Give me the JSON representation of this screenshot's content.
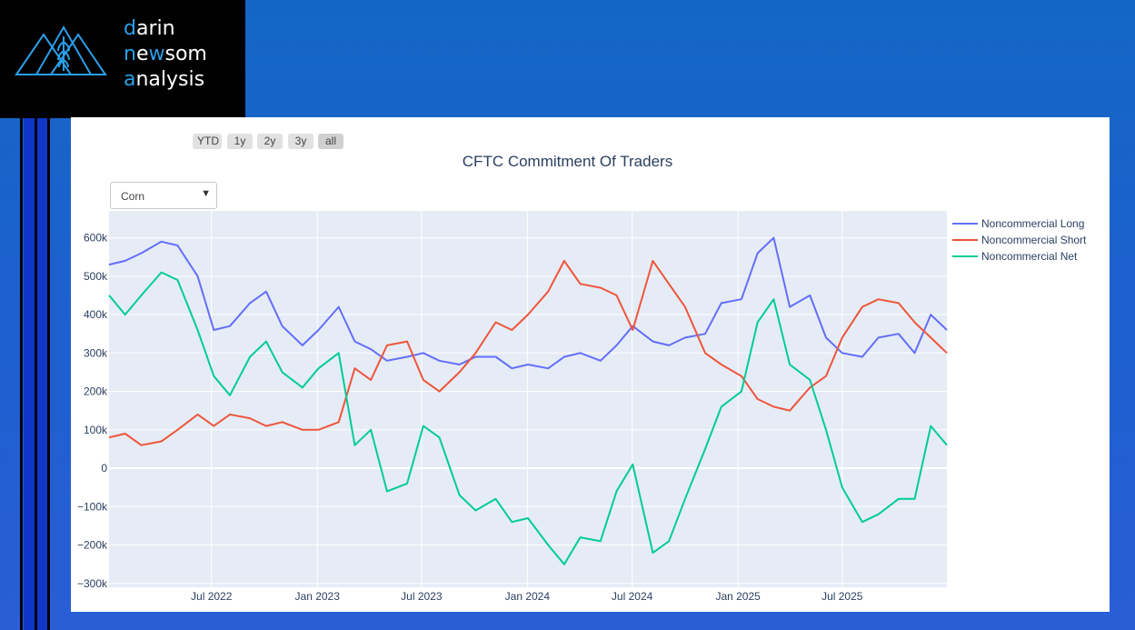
{
  "brand": {
    "line1": {
      "first": "d",
      "rest": "arin"
    },
    "line2": {
      "first": "n",
      "mid": "e",
      "w": "w",
      "rest": "som"
    },
    "line3": {
      "first": "a",
      "rest": "nalysis"
    },
    "accent_color": "#2a9fe8"
  },
  "range_selector": {
    "buttons": [
      "YTD",
      "1y",
      "2y",
      "3y",
      "all"
    ],
    "active": "all"
  },
  "dropdown": {
    "selected": "Corn",
    "icon": "caret-down-icon"
  },
  "chart_data": {
    "type": "line",
    "title": "CFTC Commitment Of Traders",
    "x_tick_labels": [
      "Jul 2022",
      "Jan 2023",
      "Jul 2023",
      "Jan 2024",
      "Jul 2024",
      "Jan 2025",
      "Jul 2025"
    ],
    "x_range": [
      "2022-01-04",
      "2025-12-30"
    ],
    "y_ticks": [
      -300000,
      -200000,
      -100000,
      0,
      100000,
      200000,
      300000,
      400000,
      500000,
      600000
    ],
    "y_tick_labels": [
      "−300k",
      "−200k",
      "−100k",
      "0",
      "100k",
      "200k",
      "300k",
      "400k",
      "500k",
      "600k"
    ],
    "ylim": [
      -310000,
      670000
    ],
    "grid": true,
    "legend_position": "right",
    "x": [
      "2022-01-04",
      "2022-02-01",
      "2022-03-01",
      "2022-04-05",
      "2022-05-03",
      "2022-06-07",
      "2022-07-05",
      "2022-08-02",
      "2022-09-06",
      "2022-10-04",
      "2022-11-01",
      "2022-12-06",
      "2023-01-03",
      "2023-02-07",
      "2023-03-07",
      "2023-04-04",
      "2023-05-02",
      "2023-06-06",
      "2023-07-04",
      "2023-08-01",
      "2023-09-05",
      "2023-10-03",
      "2023-11-07",
      "2023-12-05",
      "2024-01-02",
      "2024-02-06",
      "2024-03-05",
      "2024-04-02",
      "2024-05-07",
      "2024-06-04",
      "2024-07-02",
      "2024-08-06",
      "2024-09-03",
      "2024-10-01",
      "2024-11-05",
      "2024-12-03",
      "2025-01-07",
      "2025-02-04",
      "2025-03-04",
      "2025-04-01",
      "2025-05-06",
      "2025-06-03",
      "2025-07-01",
      "2025-08-05",
      "2025-09-02",
      "2025-10-07",
      "2025-11-04",
      "2025-12-02",
      "2025-12-30"
    ],
    "series": [
      {
        "name": "Noncommercial Long",
        "color": "#636efa",
        "values": [
          530000,
          540000,
          560000,
          590000,
          580000,
          500000,
          360000,
          370000,
          430000,
          460000,
          370000,
          320000,
          360000,
          420000,
          330000,
          310000,
          280000,
          290000,
          300000,
          280000,
          270000,
          290000,
          290000,
          260000,
          270000,
          260000,
          290000,
          300000,
          280000,
          320000,
          370000,
          330000,
          320000,
          340000,
          350000,
          430000,
          440000,
          560000,
          600000,
          420000,
          450000,
          340000,
          300000,
          290000,
          340000,
          350000,
          300000,
          400000,
          360000
        ]
      },
      {
        "name": "Noncommercial Short",
        "color": "#ef553b",
        "values": [
          80000,
          90000,
          60000,
          70000,
          100000,
          140000,
          110000,
          140000,
          130000,
          110000,
          120000,
          100000,
          100000,
          120000,
          260000,
          230000,
          320000,
          330000,
          230000,
          200000,
          250000,
          300000,
          380000,
          360000,
          400000,
          460000,
          540000,
          480000,
          470000,
          450000,
          360000,
          540000,
          480000,
          420000,
          300000,
          270000,
          240000,
          180000,
          160000,
          150000,
          210000,
          240000,
          340000,
          420000,
          440000,
          430000,
          380000,
          340000,
          300000
        ]
      },
      {
        "name": "Noncommercial Net",
        "color": "#00cc96",
        "values": [
          450000,
          400000,
          450000,
          510000,
          490000,
          360000,
          240000,
          190000,
          290000,
          330000,
          250000,
          210000,
          260000,
          300000,
          60000,
          100000,
          -60000,
          -40000,
          110000,
          80000,
          -70000,
          -110000,
          -80000,
          -140000,
          -130000,
          -200000,
          -250000,
          -180000,
          -190000,
          -60000,
          10000,
          -220000,
          -190000,
          -80000,
          50000,
          160000,
          200000,
          380000,
          440000,
          270000,
          230000,
          100000,
          -50000,
          -140000,
          -120000,
          -80000,
          -80000,
          110000,
          60000
        ]
      }
    ]
  }
}
